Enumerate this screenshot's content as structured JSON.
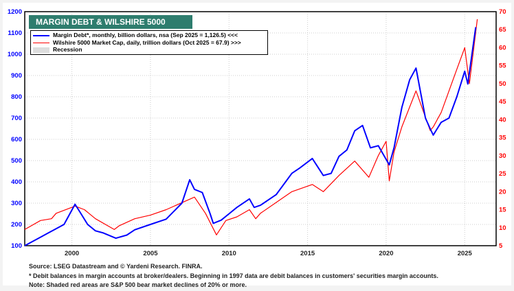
{
  "chart_data": {
    "type": "line",
    "title": "MARGIN DEBT & WILSHIRE 5000",
    "x_ticks": [
      "2000",
      "2005",
      "2010",
      "2015",
      "2020",
      "2025"
    ],
    "xlim": [
      1997,
      2027
    ],
    "left_axis": {
      "ylim": [
        100,
        1200
      ],
      "ticks": [
        "100",
        "200",
        "300",
        "400",
        "500",
        "600",
        "700",
        "800",
        "900",
        "1000",
        "1100",
        "1200"
      ],
      "color": "#0000ff"
    },
    "right_axis": {
      "ylim": [
        5,
        70
      ],
      "ticks": [
        "5",
        "10",
        "15",
        "20",
        "25",
        "30",
        "35",
        "40",
        "45",
        "50",
        "55",
        "60",
        "65",
        "70"
      ],
      "color": "#ff0000"
    },
    "legend": [
      "Margin Debt*, monthly, billion dollars, nsa (Sep 2025 = 1,126.5) <<<",
      "Wilshire 5000 Market Cap, daily, trillion dollars  (Oct 2025 = 67.9) >>>",
      "Recession"
    ],
    "series": [
      {
        "name": "Margin Debt",
        "axis": "left",
        "color": "#0000ff",
        "x": [
          1997,
          1998,
          1998.5,
          1999,
          1999.5,
          2000.2,
          2000.5,
          2001,
          2001.5,
          2002,
          2002.8,
          2003.5,
          2004,
          2005,
          2006,
          2007,
          2007.5,
          2007.8,
          2008.3,
          2008.8,
          2009,
          2009.5,
          2010,
          2010.5,
          2011.3,
          2011.6,
          2012,
          2013,
          2014,
          2014.5,
          2015.3,
          2016,
          2016.5,
          2017,
          2017.5,
          2018,
          2018.5,
          2019,
          2019.5,
          2020.2,
          2020.5,
          2021,
          2021.5,
          2021.9,
          2022.5,
          2022.8,
          2023,
          2023.5,
          2024,
          2024.5,
          2025,
          2025.2,
          2025.7
        ],
        "y": [
          100,
          140,
          160,
          180,
          200,
          295,
          260,
          200,
          170,
          160,
          135,
          150,
          175,
          200,
          225,
          300,
          410,
          365,
          350,
          250,
          205,
          220,
          250,
          280,
          320,
          280,
          290,
          340,
          440,
          465,
          510,
          430,
          440,
          520,
          550,
          640,
          665,
          560,
          570,
          480,
          560,
          750,
          880,
          935,
          700,
          650,
          620,
          680,
          700,
          800,
          920,
          860,
          1127
        ]
      },
      {
        "name": "Wilshire 5000",
        "axis": "right",
        "color": "#ff0000",
        "x": [
          1997,
          1998,
          1998.7,
          1999,
          2000.2,
          2000.8,
          2001.5,
          2002.7,
          2003,
          2004,
          2005,
          2006,
          2007.8,
          2008.5,
          2009.2,
          2009.8,
          2010.5,
          2011.3,
          2011.7,
          2012,
          2013,
          2014,
          2015.3,
          2016,
          2017,
          2018,
          2018.9,
          2019.5,
          2020,
          2020.2,
          2020.5,
          2021,
          2021.9,
          2022.8,
          2023,
          2023.5,
          2024,
          2024.5,
          2025,
          2025.3,
          2025.8
        ],
        "y": [
          9.5,
          12,
          12.5,
          14,
          16,
          15,
          12.5,
          9.5,
          10.5,
          12.5,
          13.5,
          15,
          18.5,
          14,
          8,
          12,
          13,
          15,
          12.5,
          14,
          17,
          20,
          22,
          20,
          24.5,
          28.5,
          24,
          30,
          34,
          23,
          31,
          38,
          48,
          37,
          38,
          42,
          48,
          54,
          60,
          50,
          67.9
        ]
      }
    ]
  },
  "notes": [
    "Source: LSEG Datastream and © Yardeni Research. FINRA.",
    "* Debit balances in margin accounts at broker/dealers. Beginning in 1997 data are debit balances in customers' securities margin accounts.",
    "Note: Shaded red areas are S&P 500 bear market declines of 20% or more."
  ]
}
